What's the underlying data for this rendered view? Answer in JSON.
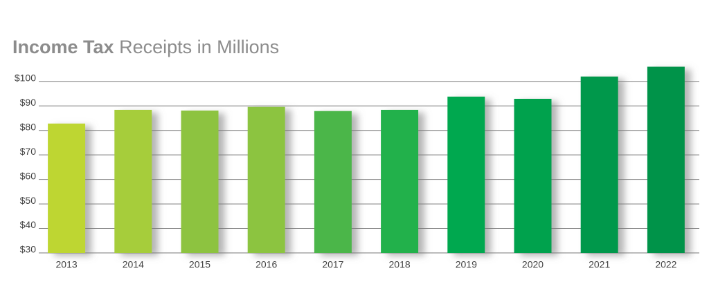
{
  "chart_data": {
    "type": "bar",
    "title": [
      "Income Tax",
      "Receipts in Millions"
    ],
    "categories": [
      "2013",
      "2014",
      "2015",
      "2016",
      "2017",
      "2018",
      "2019",
      "2020",
      "2021",
      "2022"
    ],
    "values": [
      82.8,
      88.4,
      88.1,
      89.6,
      87.9,
      88.4,
      93.8,
      92.9,
      102,
      106
    ],
    "colors": [
      "#bed630",
      "#a6cd3a",
      "#8dc33f",
      "#8cc43f",
      "#4cb649",
      "#22b14c",
      "#00a84f",
      "#00a24e",
      "#00984c",
      "#009349"
    ],
    "ylim": [
      30,
      107
    ],
    "yticks": [
      {
        "value": 30,
        "label": "$30"
      },
      {
        "value": 40,
        "label": "$40"
      },
      {
        "value": 50,
        "label": "$50"
      },
      {
        "value": 60,
        "label": "$60"
      },
      {
        "value": 70,
        "label": "$70"
      },
      {
        "value": 80,
        "label": "$80"
      },
      {
        "value": 90,
        "label": "$90"
      },
      {
        "value": 100,
        "label": "$100"
      }
    ],
    "grid": true
  }
}
